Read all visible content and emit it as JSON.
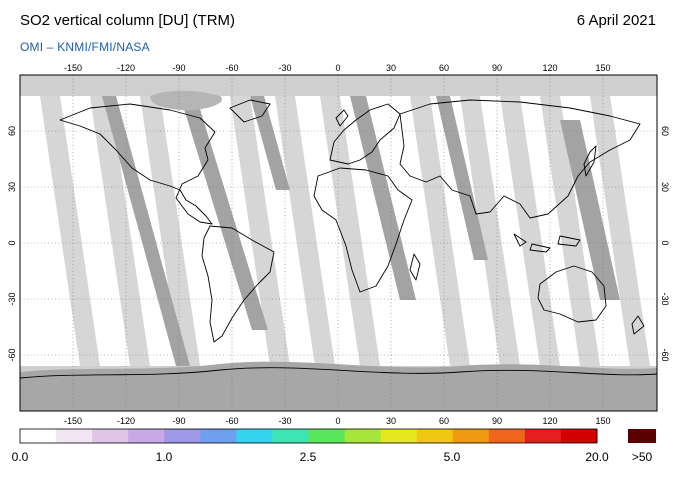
{
  "header": {
    "title": "SO2 vertical column [DU] (TRM)",
    "date": "6 April 2021",
    "subtitle": "OMI  –  KNMI/FMI/NASA"
  },
  "map": {
    "projection": "equirectangular",
    "lon_range": [
      -180,
      180
    ],
    "lat_range": [
      -90,
      90
    ],
    "lon_ticks": [
      "-150",
      "-120",
      "-90",
      "-60",
      "-30",
      "0",
      "30",
      "60",
      "90",
      "120",
      "150"
    ],
    "lat_ticks": [
      "60",
      "30",
      "0",
      "-30",
      "-60"
    ],
    "background_no_data_color": "#cfcfcf",
    "swath_color_light": "#d5d5d5",
    "swath_color_dark": "#a2a2a2",
    "land_color": "#ffffff",
    "coastline_color": "#000000",
    "grid": "dotted"
  },
  "colorbar": {
    "labels": [
      "0.0",
      "1.0",
      "2.5",
      "5.0",
      "20.0"
    ],
    "overflow_label": ">50",
    "overflow_color": "#5a0000",
    "colors": [
      "#ffffff",
      "#f3e6f3",
      "#e1c6e9",
      "#c9a8e6",
      "#9f98e6",
      "#6fa0f0",
      "#34d3f0",
      "#3ce6b4",
      "#5ae65a",
      "#a6e63a",
      "#e6e61e",
      "#f0c814",
      "#f09a14",
      "#f0641e",
      "#e61e1e",
      "#d20000"
    ]
  }
}
